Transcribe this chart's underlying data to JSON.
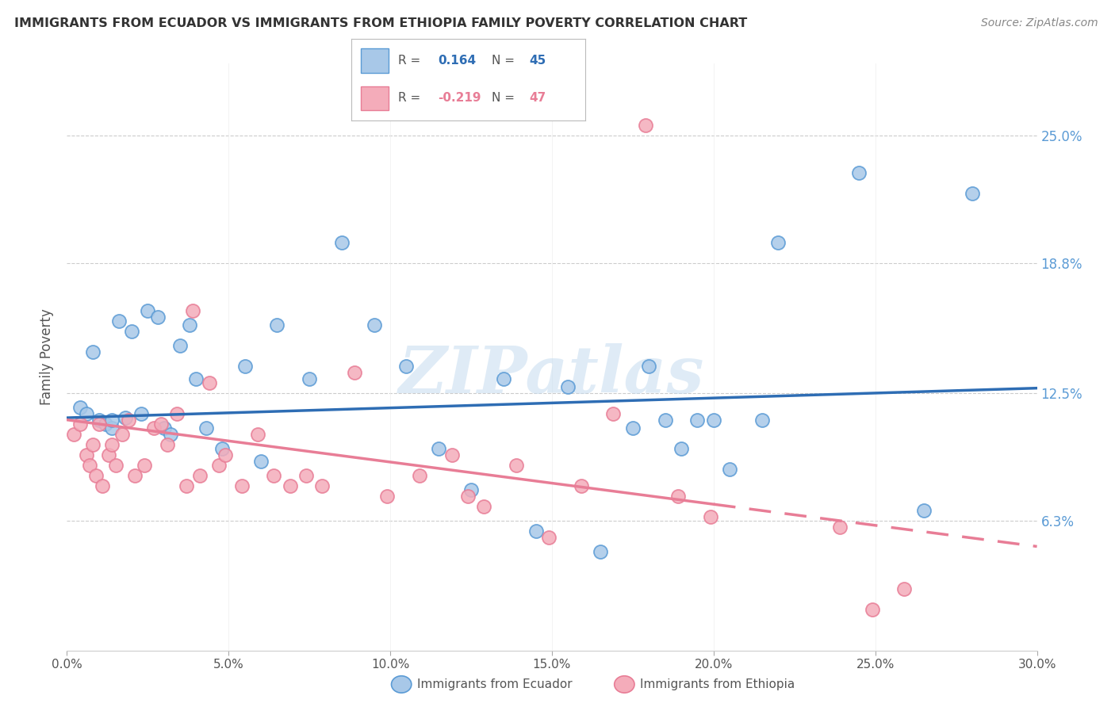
{
  "title": "IMMIGRANTS FROM ECUADOR VS IMMIGRANTS FROM ETHIOPIA FAMILY POVERTY CORRELATION CHART",
  "source": "Source: ZipAtlas.com",
  "ylabel": "Family Poverty",
  "yticks": [
    6.3,
    12.5,
    18.8,
    25.0
  ],
  "ytick_labels": [
    "6.3%",
    "12.5%",
    "18.8%",
    "25.0%"
  ],
  "xmin": 0.0,
  "xmax": 30.0,
  "ymin": 0.0,
  "ymax": 28.5,
  "ecuador_color": "#A8C8E8",
  "ecuador_edge": "#5B9BD5",
  "ethiopia_color": "#F4ACBA",
  "ethiopia_edge": "#E87D96",
  "ecuador_R": 0.164,
  "ecuador_N": 45,
  "ethiopia_R": -0.219,
  "ethiopia_N": 47,
  "ecuador_x": [
    0.4,
    0.6,
    0.8,
    1.0,
    1.2,
    1.4,
    1.4,
    1.6,
    1.8,
    2.0,
    2.3,
    2.5,
    2.8,
    3.0,
    3.2,
    3.5,
    3.8,
    4.0,
    4.3,
    4.8,
    5.5,
    6.0,
    6.5,
    7.5,
    8.5,
    9.5,
    10.5,
    11.5,
    12.5,
    13.5,
    14.5,
    15.5,
    16.5,
    17.5,
    18.0,
    18.5,
    19.0,
    19.5,
    20.0,
    20.5,
    21.5,
    22.0,
    24.5,
    26.5,
    28.0
  ],
  "ecuador_y": [
    11.8,
    11.5,
    14.5,
    11.2,
    11.0,
    10.8,
    11.2,
    16.0,
    11.3,
    15.5,
    11.5,
    16.5,
    16.2,
    10.8,
    10.5,
    14.8,
    15.8,
    13.2,
    10.8,
    9.8,
    13.8,
    9.2,
    15.8,
    13.2,
    19.8,
    15.8,
    13.8,
    9.8,
    7.8,
    13.2,
    5.8,
    12.8,
    4.8,
    10.8,
    13.8,
    11.2,
    9.8,
    11.2,
    11.2,
    8.8,
    11.2,
    19.8,
    23.2,
    6.8,
    22.2
  ],
  "ethiopia_x": [
    0.2,
    0.4,
    0.6,
    0.7,
    0.8,
    0.9,
    1.0,
    1.1,
    1.3,
    1.4,
    1.5,
    1.7,
    1.9,
    2.1,
    2.4,
    2.7,
    2.9,
    3.1,
    3.4,
    3.7,
    3.9,
    4.1,
    4.4,
    4.7,
    4.9,
    5.4,
    5.9,
    6.4,
    6.9,
    7.4,
    7.9,
    8.9,
    9.9,
    10.9,
    11.9,
    12.4,
    12.9,
    13.9,
    14.9,
    15.9,
    16.9,
    17.9,
    18.9,
    19.9,
    23.9,
    24.9,
    25.9
  ],
  "ethiopia_y": [
    10.5,
    11.0,
    9.5,
    9.0,
    10.0,
    8.5,
    11.0,
    8.0,
    9.5,
    10.0,
    9.0,
    10.5,
    11.2,
    8.5,
    9.0,
    10.8,
    11.0,
    10.0,
    11.5,
    8.0,
    16.5,
    8.5,
    13.0,
    9.0,
    9.5,
    8.0,
    10.5,
    8.5,
    8.0,
    8.5,
    8.0,
    13.5,
    7.5,
    8.5,
    9.5,
    7.5,
    7.0,
    9.0,
    5.5,
    8.0,
    11.5,
    25.5,
    7.5,
    6.5,
    6.0,
    2.0,
    3.0
  ],
  "watermark": "ZIPatlas",
  "ecuador_trend_y_intercept": 11.3,
  "ecuador_trend_slope": 0.048,
  "ethiopia_trend_y_intercept": 11.2,
  "ethiopia_trend_slope": -0.205,
  "ethiopia_solid_end_x": 20.0
}
